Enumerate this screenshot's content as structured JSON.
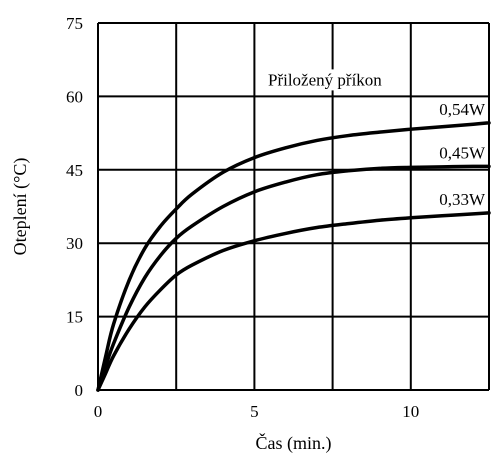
{
  "chart_data": {
    "type": "line",
    "title": "",
    "xlabel": "Čas (min.)",
    "ylabel": "Oteplení (°C)",
    "xlim": [
      0,
      12.5
    ],
    "ylim": [
      0,
      75
    ],
    "xticks": [
      0,
      2.5,
      5,
      7.5,
      10,
      12.5
    ],
    "xtick_labels": [
      "0",
      "",
      "5",
      "",
      "10",
      ""
    ],
    "yticks": [
      0,
      15,
      30,
      45,
      60,
      75
    ],
    "ytick_labels": [
      "0",
      "15",
      "30",
      "45",
      "60",
      "75"
    ],
    "grid": true,
    "legend": "none",
    "annotation": "Přiložený příkon",
    "series": [
      {
        "name": "0,54W",
        "x": [
          0,
          0.25,
          0.5,
          1,
          1.5,
          2,
          2.5,
          3,
          4,
          5,
          6,
          7,
          8,
          9,
          10,
          11,
          12,
          12.5
        ],
        "y": [
          0,
          7,
          13.5,
          22.5,
          29,
          33.5,
          37,
          40,
          44.5,
          47.5,
          49.5,
          51,
          52,
          52.7,
          53.3,
          53.8,
          54.3,
          54.6
        ]
      },
      {
        "name": "0,45W",
        "x": [
          0,
          0.25,
          0.5,
          1,
          1.5,
          2,
          2.5,
          3,
          4,
          5,
          6,
          7,
          8,
          9,
          10,
          11,
          12,
          12.5
        ],
        "y": [
          0,
          5,
          9.5,
          17,
          23,
          27.5,
          31,
          33.5,
          37.5,
          40.5,
          42.5,
          44,
          44.8,
          45.3,
          45.5,
          45.6,
          45.7,
          45.7
        ]
      },
      {
        "name": "0,33W",
        "x": [
          0,
          0.25,
          0.5,
          1,
          1.5,
          2,
          2.5,
          3,
          4,
          5,
          6,
          7,
          8,
          9,
          10,
          11,
          12,
          12.5
        ],
        "y": [
          0,
          3.5,
          7,
          12.5,
          17,
          20.5,
          23.5,
          25.5,
          28.5,
          30.5,
          32,
          33.2,
          34,
          34.7,
          35.2,
          35.6,
          36,
          36.2
        ]
      }
    ]
  }
}
